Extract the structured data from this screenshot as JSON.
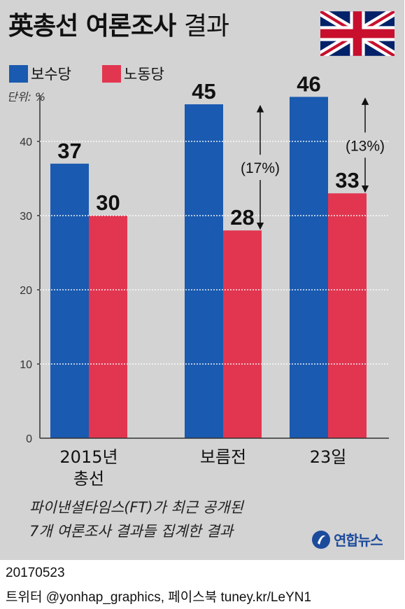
{
  "title": {
    "main": "英총선 여론조사",
    "suffix": "결과"
  },
  "legend": {
    "conservative": {
      "label": "보수당",
      "color": "#1a5ab0"
    },
    "labour": {
      "label": "노동당",
      "color": "#e23650"
    }
  },
  "unit": "단위: %",
  "chart_data": {
    "type": "bar",
    "categories": [
      {
        "line1": "2015년",
        "line2": "총선"
      },
      {
        "line1": "보름전",
        "line2": ""
      },
      {
        "line1": "23일",
        "line2": ""
      }
    ],
    "series": [
      {
        "name": "보수당",
        "values": [
          37,
          45,
          46
        ],
        "labels": [
          "37",
          "45",
          "46"
        ],
        "color": "#1a5ab0"
      },
      {
        "name": "노동당",
        "values": [
          30,
          28,
          33
        ],
        "labels": [
          "30",
          "28",
          "33"
        ],
        "color": "#e23650"
      }
    ],
    "ylim": [
      0,
      50
    ],
    "yticks": [
      "0",
      "10",
      "20",
      "30",
      "40"
    ],
    "gaps": [
      {
        "category": 1,
        "label": "(17%)"
      },
      {
        "category": 2,
        "label": "(13%)"
      }
    ]
  },
  "note": {
    "line1": "파이낸셜타임스(FT)가 최근 공개된",
    "line2": "7개 여론조사 결과들 집계한 결과"
  },
  "logo": {
    "name": "연합뉴스"
  },
  "date": "20170523",
  "credit": "트위터 @yonhap_graphics, 페이스북 tuney.kr/LeYN1"
}
